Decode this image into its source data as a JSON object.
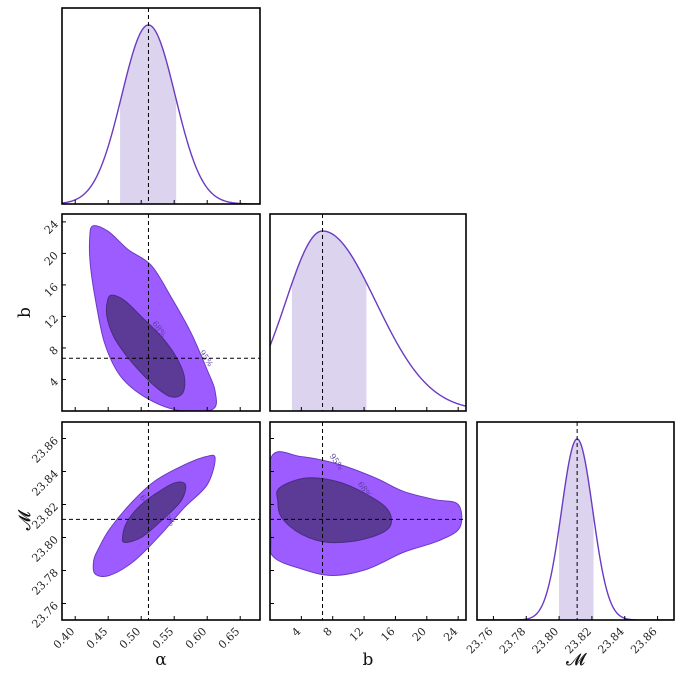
{
  "chart_data": {
    "type": "corner",
    "parameters": [
      {
        "name": "alpha",
        "label": "α",
        "range": [
          0.38,
          0.68
        ],
        "ticks": [
          0.4,
          0.45,
          0.5,
          0.55,
          0.6,
          0.65
        ],
        "tick_labels": [
          "0.40",
          "0.45",
          "0.50",
          "0.55",
          "0.60",
          "0.65"
        ],
        "truth": 0.511,
        "peak": 0.511,
        "interval": [
          0.468,
          0.553
        ]
      },
      {
        "name": "b",
        "label": "b",
        "range": [
          0.0,
          25.0
        ],
        "ticks": [
          4,
          8,
          12,
          16,
          20,
          24
        ],
        "tick_labels": [
          "4",
          "8",
          "12",
          "16",
          "20",
          "24"
        ],
        "truth": 6.7,
        "peak": 6.7,
        "interval": [
          2.8,
          12.3
        ]
      },
      {
        "name": "chirp_mass",
        "label": "𝓜",
        "range": [
          23.75,
          23.87
        ],
        "ticks": [
          23.76,
          23.78,
          23.8,
          23.82,
          23.84,
          23.86
        ],
        "tick_labels": [
          "23.76",
          "23.78",
          "23.80",
          "23.82",
          "23.84",
          "23.86"
        ],
        "truth": 23.811,
        "peak": 23.811,
        "interval": [
          23.8,
          23.821
        ]
      }
    ],
    "contour_levels": [
      "68%",
      "95%"
    ],
    "contours": {
      "b_vs_alpha": {
        "outer": [
          [
            0.427,
            23.5
          ],
          [
            0.45,
            22.8
          ],
          [
            0.48,
            20.5
          ],
          [
            0.515,
            18.5
          ],
          [
            0.545,
            14.5
          ],
          [
            0.575,
            10.0
          ],
          [
            0.6,
            5.2
          ],
          [
            0.612,
            2.5
          ],
          [
            0.608,
            0.2
          ],
          [
            0.555,
            0.1
          ],
          [
            0.505,
            1.8
          ],
          [
            0.468,
            4.5
          ],
          [
            0.445,
            8.5
          ],
          [
            0.432,
            13.5
          ],
          [
            0.423,
            18.5
          ],
          [
            0.422,
            22.0
          ]
        ],
        "inner": [
          [
            0.456,
            14.7
          ],
          [
            0.475,
            14.0
          ],
          [
            0.5,
            12.0
          ],
          [
            0.53,
            9.5
          ],
          [
            0.552,
            7.0
          ],
          [
            0.565,
            4.5
          ],
          [
            0.563,
            2.3
          ],
          [
            0.545,
            1.8
          ],
          [
            0.52,
            3.2
          ],
          [
            0.495,
            5.3
          ],
          [
            0.475,
            7.3
          ],
          [
            0.458,
            9.5
          ],
          [
            0.448,
            12.0
          ],
          [
            0.449,
            14.0
          ]
        ]
      },
      "chirp_mass_vs_alpha": {
        "outer": [
          [
            0.43,
            23.778
          ],
          [
            0.452,
            23.777
          ],
          [
            0.49,
            23.786
          ],
          [
            0.53,
            23.802
          ],
          [
            0.565,
            23.818
          ],
          [
            0.6,
            23.832
          ],
          [
            0.612,
            23.848
          ],
          [
            0.598,
            23.849
          ],
          [
            0.56,
            23.843
          ],
          [
            0.52,
            23.834
          ],
          [
            0.485,
            23.821
          ],
          [
            0.452,
            23.805
          ],
          [
            0.435,
            23.793
          ],
          [
            0.428,
            23.786
          ]
        ],
        "inner": [
          [
            0.475,
            23.797
          ],
          [
            0.5,
            23.8
          ],
          [
            0.53,
            23.81
          ],
          [
            0.56,
            23.822
          ],
          [
            0.567,
            23.832
          ],
          [
            0.55,
            23.833
          ],
          [
            0.52,
            23.826
          ],
          [
            0.495,
            23.818
          ],
          [
            0.478,
            23.809
          ],
          [
            0.472,
            23.801
          ]
        ]
      },
      "chirp_mass_vs_b": {
        "outer": [
          [
            0.1,
            23.848
          ],
          [
            4.0,
            23.849
          ],
          [
            9.0,
            23.844
          ],
          [
            13.5,
            23.836
          ],
          [
            17.0,
            23.828
          ],
          [
            21.0,
            23.823
          ],
          [
            24.0,
            23.82
          ],
          [
            24.2,
            23.806
          ],
          [
            21.5,
            23.798
          ],
          [
            17.0,
            23.791
          ],
          [
            12.5,
            23.781
          ],
          [
            8.0,
            23.777
          ],
          [
            4.0,
            23.781
          ],
          [
            0.5,
            23.788
          ],
          [
            0.1,
            23.8
          ]
        ],
        "inner": [
          [
            1.2,
            23.83
          ],
          [
            4.5,
            23.836
          ],
          [
            8.5,
            23.834
          ],
          [
            12.0,
            23.827
          ],
          [
            15.0,
            23.817
          ],
          [
            15.2,
            23.806
          ],
          [
            12.0,
            23.799
          ],
          [
            7.5,
            23.797
          ],
          [
            4.0,
            23.802
          ],
          [
            1.5,
            23.812
          ],
          [
            1.0,
            23.822
          ]
        ]
      }
    },
    "contour_label_positions": [
      {
        "panel": "b_vs_alpha",
        "text": "68%",
        "x": 0.524,
        "y": 10.2
      },
      {
        "panel": "b_vs_alpha",
        "text": "95%",
        "x": 0.595,
        "y": 6.5
      },
      {
        "panel": "chirp_mass_vs_alpha",
        "text": "68%",
        "x": 0.505,
        "y": 23.82
      },
      {
        "panel": "chirp_mass_vs_alpha",
        "text": "68%",
        "x": 0.537,
        "y": 23.811
      },
      {
        "panel": "chirp_mass_vs_b",
        "text": "95%",
        "x": 8.2,
        "y": 23.845
      },
      {
        "panel": "chirp_mass_vs_b",
        "text": "68%",
        "x": 11.8,
        "y": 23.828
      }
    ],
    "colors": {
      "line": "#6a3bc2",
      "band": "#dcd3ee",
      "outer_fill": "#9d5cff",
      "inner_fill": "#5b3b96",
      "truth": "#000000"
    }
  }
}
